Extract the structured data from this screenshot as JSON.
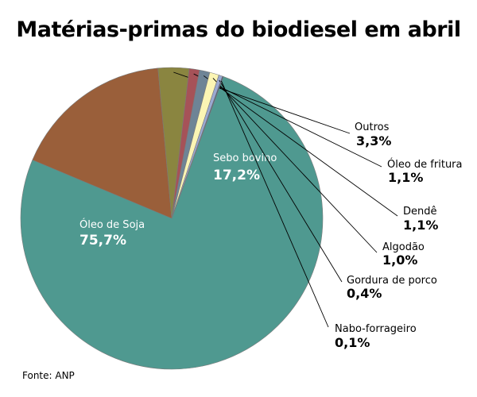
{
  "chart_data": {
    "type": "pie",
    "title": "Matérias-primas do biodiesel em abril",
    "slices": [
      {
        "name": "Óleo de Soja",
        "value": 75.7,
        "display": "75,7%",
        "color": "#4f9990"
      },
      {
        "name": "Sebo bovino",
        "value": 17.2,
        "display": "17,2%",
        "color": "#9a5f3a"
      },
      {
        "name": "Outros",
        "value": 3.3,
        "display": "3,3%",
        "color": "#8a8540"
      },
      {
        "name": "Óleo de fritura",
        "value": 1.1,
        "display": "1,1%",
        "color": "#a65258"
      },
      {
        "name": "Dendê",
        "value": 1.1,
        "display": "1,1%",
        "color": "#6e8496"
      },
      {
        "name": "Algodão",
        "value": 1.0,
        "display": "1,0%",
        "color": "#fbf5b4"
      },
      {
        "name": "Gordura de porco",
        "value": 0.4,
        "display": "0,4%",
        "color": "#9aa9d2"
      },
      {
        "name": "Nabo-forrageiro",
        "value": 0.1,
        "display": "0,1%",
        "color": "#3d4f78"
      }
    ],
    "legend": "none",
    "label_placement": "inside for the two largest slices, outside with leader lines for the rest"
  },
  "source": "Fonte: ANP"
}
